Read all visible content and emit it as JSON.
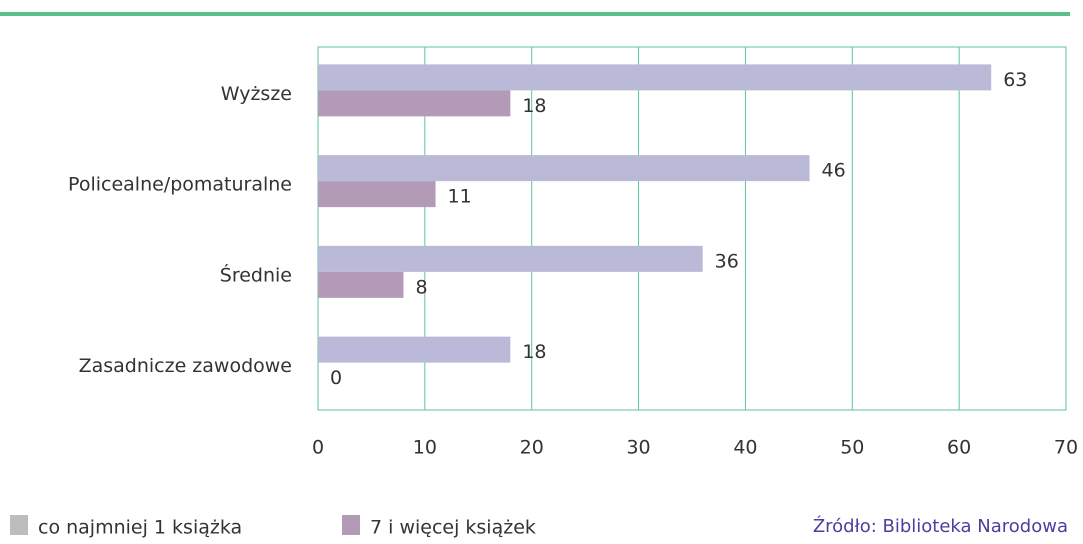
{
  "chart_data": {
    "type": "hbar",
    "categories": [
      "Wyższe",
      "Policealne/pomaturalne",
      "Średnie",
      "Zasadnicze zawodowe"
    ],
    "series": [
      {
        "name": "co najmniej 1 książka",
        "color": "#babad8",
        "legend_color": "#bdbdbd",
        "values": [
          63,
          46,
          36,
          18
        ]
      },
      {
        "name": "7 i więcej książek",
        "color": "#b39bb8",
        "legend_color": "#b39bb8",
        "values": [
          18,
          11,
          8,
          0
        ]
      }
    ],
    "xlim": [
      0,
      70
    ],
    "xticks": [
      0,
      10,
      20,
      30,
      40,
      50,
      60,
      70
    ],
    "grid": true,
    "source": "Źródło: Biblioteka Narodowa"
  }
}
